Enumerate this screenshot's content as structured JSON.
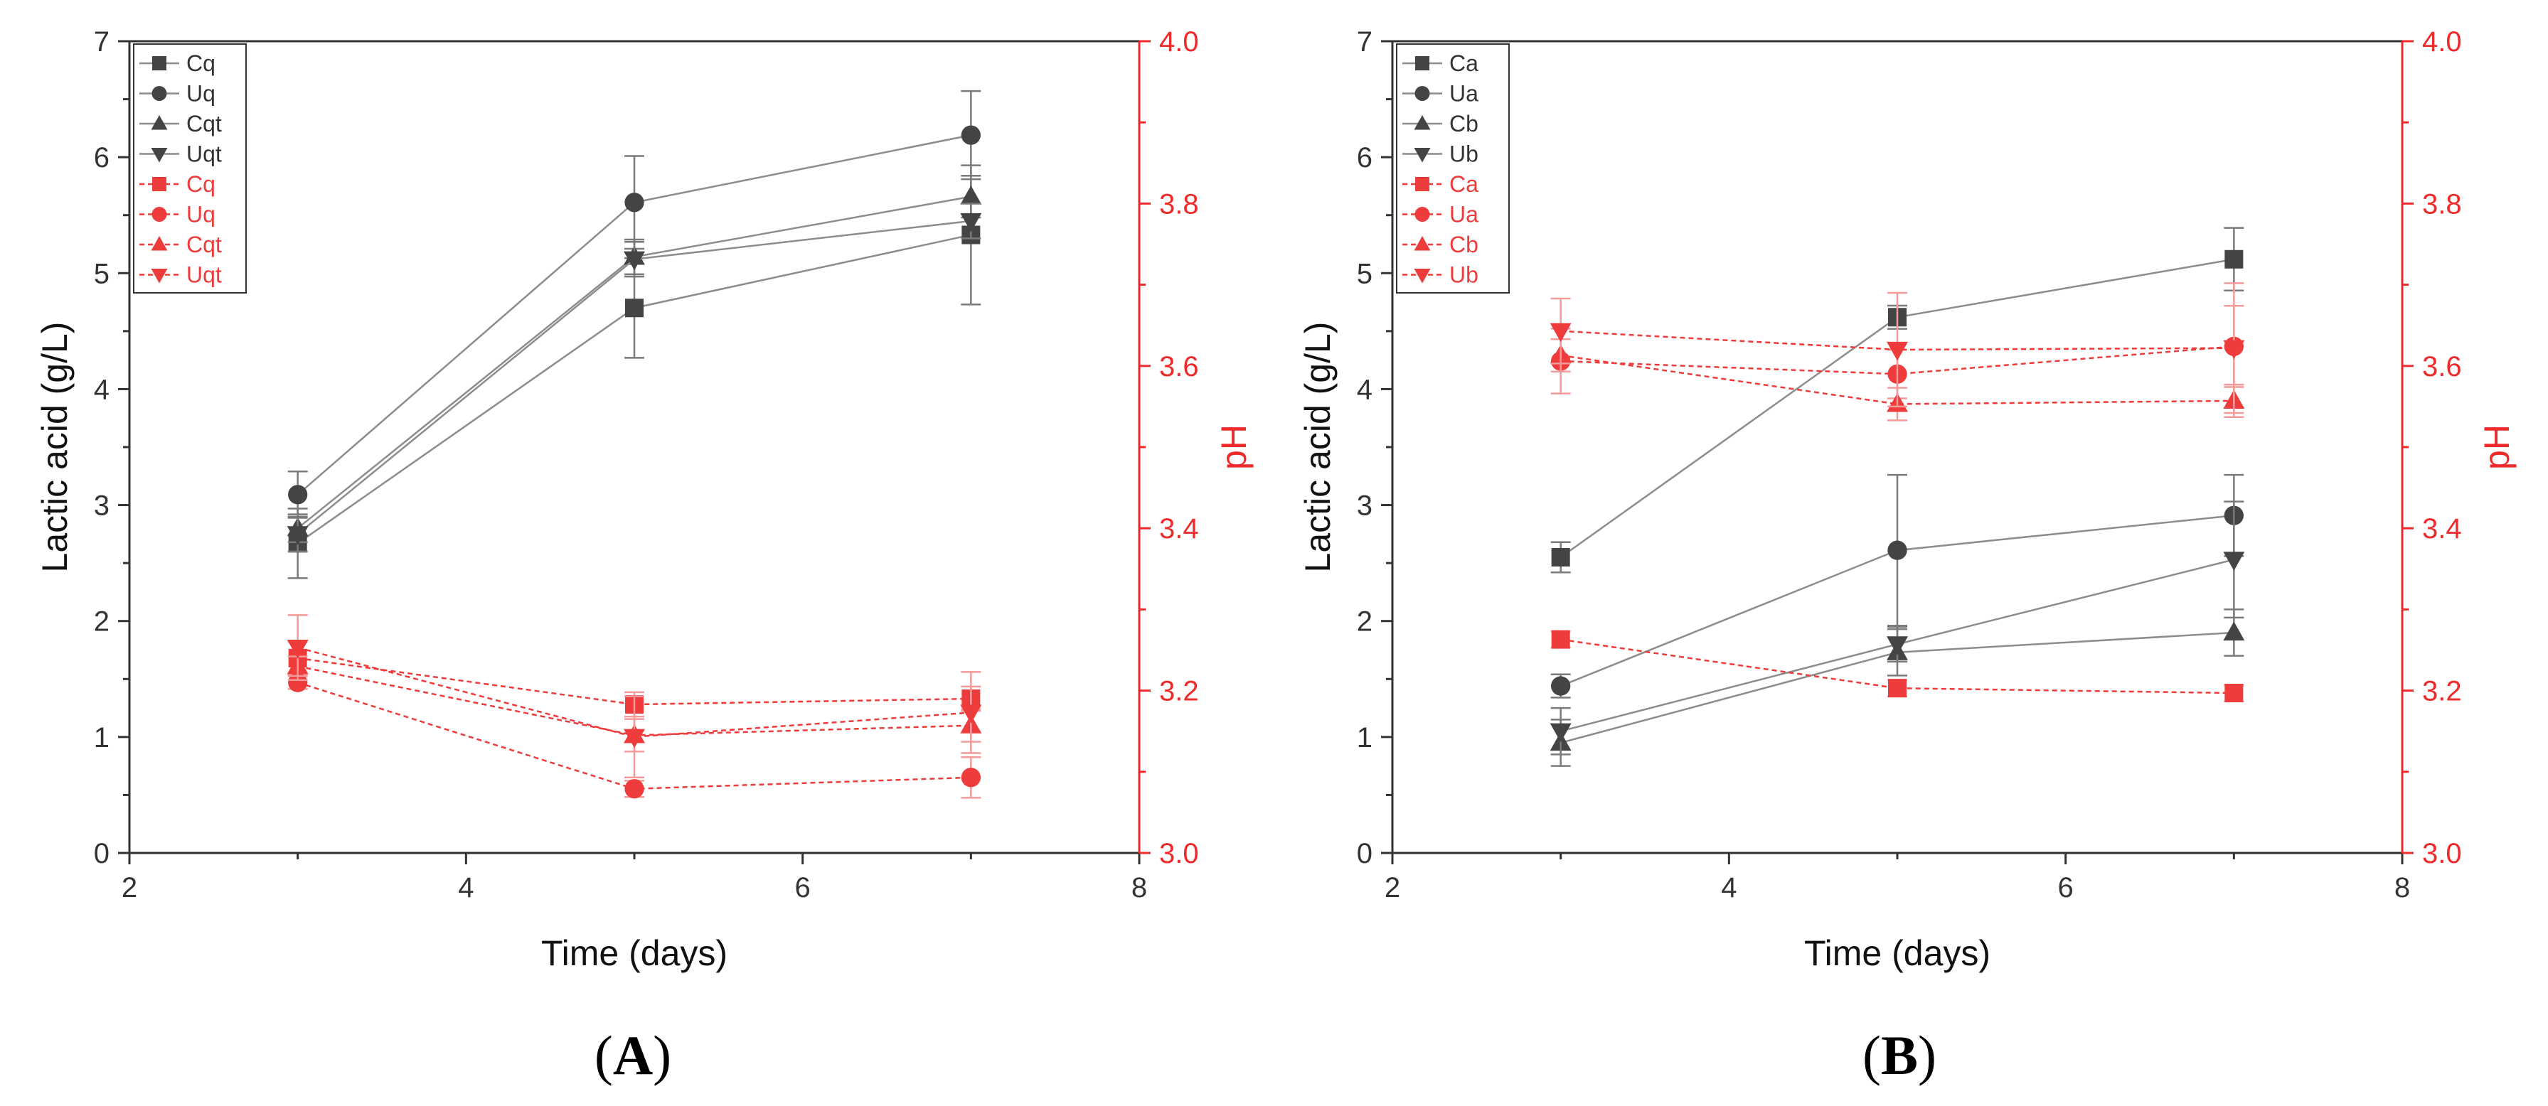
{
  "colors": {
    "left_axis": "#333333",
    "right_axis": "#ee2a2a",
    "series_grey": "#444444",
    "line_grey": "#8c8c8c",
    "series_red": "#ee3b3b"
  },
  "chart_data": [
    {
      "type": "line",
      "panel_label": "A",
      "open_paren": "(",
      "close_paren": ")",
      "xlabel": "Time (days)",
      "ylabel_left": "Lactic acid (g/L)",
      "ylabel_right": "pH",
      "xlim": [
        2,
        8
      ],
      "xticks": [
        2,
        4,
        6,
        8
      ],
      "ylim_left": [
        0,
        7
      ],
      "yticks_left": [
        0,
        1,
        2,
        3,
        4,
        5,
        6,
        7
      ],
      "ylim_right": [
        3.0,
        4.0
      ],
      "yticks_right": [
        "3.0",
        "3.2",
        "3.4",
        "3.6",
        "3.8",
        "4.0"
      ],
      "x": [
        3,
        5,
        7
      ],
      "series": [
        {
          "name": "Cq",
          "axis": "left",
          "marker": "square",
          "values": [
            2.67,
            4.7,
            5.33
          ],
          "errors": [
            0.3,
            0.43,
            0.6
          ]
        },
        {
          "name": "Uq",
          "axis": "left",
          "marker": "circle",
          "values": [
            3.09,
            5.61,
            6.19
          ],
          "errors": [
            0.2,
            0.4,
            0.38
          ]
        },
        {
          "name": "Cqt",
          "axis": "left",
          "marker": "triangle-up",
          "values": [
            2.8,
            5.14,
            5.66
          ],
          "errors": [
            0.12,
            0.15,
            0.18
          ]
        },
        {
          "name": "Uqt",
          "axis": "left",
          "marker": "triangle-down",
          "values": [
            2.75,
            5.12,
            5.45
          ],
          "errors": [
            0.15,
            0.15,
            0.15
          ]
        },
        {
          "name": "Cq",
          "axis": "right",
          "marker": "square",
          "values": [
            3.24,
            3.183,
            3.19
          ],
          "errors": [
            0.02,
            0.015,
            0.015
          ]
        },
        {
          "name": "Uq",
          "axis": "right",
          "marker": "circle",
          "values": [
            3.21,
            3.079,
            3.093
          ],
          "errors": [
            0.008,
            0.01,
            0.025
          ]
        },
        {
          "name": "Cqt",
          "axis": "right",
          "marker": "triangle-up",
          "values": [
            3.23,
            3.145,
            3.157
          ],
          "errors": [
            0.012,
            0.02,
            0.02
          ]
        },
        {
          "name": "Uqt",
          "axis": "right",
          "marker": "triangle-down",
          "values": [
            3.253,
            3.143,
            3.173
          ],
          "errors": [
            0.04,
            0.05,
            0.05
          ]
        }
      ]
    },
    {
      "type": "line",
      "panel_label": "B",
      "open_paren": "(",
      "close_paren": ")",
      "xlabel": "Time (days)",
      "ylabel_left": "Lactic acid (g/L)",
      "ylabel_right": "pH",
      "xlim": [
        2,
        8
      ],
      "xticks": [
        2,
        4,
        6,
        8
      ],
      "ylim_left": [
        0,
        7
      ],
      "yticks_left": [
        0,
        1,
        2,
        3,
        4,
        5,
        6,
        7
      ],
      "ylim_right": [
        3.0,
        4.0
      ],
      "yticks_right": [
        "3.0",
        "3.2",
        "3.4",
        "3.6",
        "3.8",
        "4.0"
      ],
      "x": [
        3,
        5,
        7
      ],
      "series": [
        {
          "name": "Ca",
          "axis": "left",
          "marker": "square",
          "values": [
            2.55,
            4.62,
            5.12
          ],
          "errors": [
            0.13,
            0.1,
            0.27
          ]
        },
        {
          "name": "Ua",
          "axis": "left",
          "marker": "circle",
          "values": [
            1.44,
            2.61,
            2.91
          ],
          "errors": [
            0.1,
            0.65,
            0.35
          ]
        },
        {
          "name": "Cb",
          "axis": "left",
          "marker": "triangle-up",
          "values": [
            0.95,
            1.73,
            1.9
          ],
          "errors": [
            0.2,
            0.2,
            0.2
          ]
        },
        {
          "name": "Ub",
          "axis": "left",
          "marker": "triangle-down",
          "values": [
            1.05,
            1.8,
            2.53
          ],
          "errors": [
            0.2,
            0.15,
            0.5
          ]
        },
        {
          "name": "Ca",
          "axis": "right",
          "marker": "square",
          "values": [
            3.263,
            3.203,
            3.197
          ],
          "errors": [
            0.01,
            0.01,
            0.01
          ]
        },
        {
          "name": "Ua",
          "axis": "right",
          "marker": "circle",
          "values": [
            3.606,
            3.59,
            3.624
          ],
          "errors": [
            0.04,
            0.03,
            0.05
          ]
        },
        {
          "name": "Cb",
          "axis": "right",
          "marker": "triangle-up",
          "values": [
            3.613,
            3.553,
            3.557
          ],
          "errors": [
            0.02,
            0.02,
            0.02
          ]
        },
        {
          "name": "Ub",
          "axis": "right",
          "marker": "triangle-down",
          "values": [
            3.643,
            3.62,
            3.622
          ],
          "errors": [
            0.04,
            0.07,
            0.08
          ]
        }
      ]
    }
  ]
}
